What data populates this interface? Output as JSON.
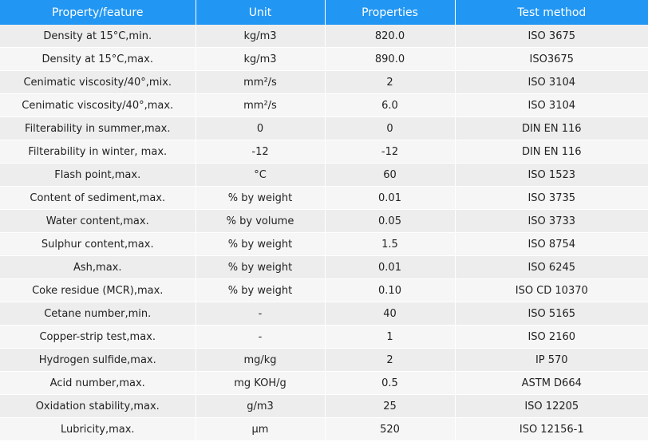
{
  "colors": {
    "header_bg": "#2196f3",
    "header_text": "#ffffff",
    "row_odd": "#ededed",
    "row_even": "#f6f6f6"
  },
  "table": {
    "headers": [
      "Property/feature",
      "Unit",
      "Properties",
      "Test method"
    ],
    "rows": [
      [
        "Density at 15°C,min.",
        "kg/m3",
        "820.0",
        "ISO 3675"
      ],
      [
        "Density at 15°C,max.",
        "kg/m3",
        "890.0",
        "ISO3675"
      ],
      [
        "Cenimatic viscosity/40°,mix.",
        "mm²/s",
        "2",
        "ISO 3104"
      ],
      [
        "Cenimatic viscosity/40°,max.",
        "mm²/s",
        "6.0",
        "ISO 3104"
      ],
      [
        "Filterability in summer,max.",
        "0",
        "0",
        "DIN EN 116"
      ],
      [
        "Filterability in winter, max.",
        "-12",
        "-12",
        "DIN EN 116"
      ],
      [
        "Flash point,max.",
        "°C",
        "60",
        "ISO 1523"
      ],
      [
        "Content of sediment,max.",
        "% by weight",
        "0.01",
        "ISO 3735"
      ],
      [
        "Water content,max.",
        "% by volume",
        "0.05",
        "ISO 3733"
      ],
      [
        "Sulphur content,max.",
        "% by weight",
        "1.5",
        "ISO 8754"
      ],
      [
        "Ash,max.",
        "% by weight",
        "0.01",
        "ISO 6245"
      ],
      [
        "Coke residue (MCR),max.",
        "% by weight",
        "0.10",
        "ISO CD 10370"
      ],
      [
        "Cetane number,min.",
        "-",
        "40",
        "ISO 5165"
      ],
      [
        "Copper-strip test,max.",
        "-",
        "1",
        "ISO 2160"
      ],
      [
        "Hydrogen sulfide,max.",
        "mg/kg",
        "2",
        "IP 570"
      ],
      [
        "Acid number,max.",
        "mg KOH/g",
        "0.5",
        "ASTM D664"
      ],
      [
        "Oxidation stability,max.",
        "g/m3",
        "25",
        "ISO 12205"
      ],
      [
        "Lubricity,max.",
        "μm",
        "520",
        "ISO 12156-1"
      ]
    ]
  }
}
